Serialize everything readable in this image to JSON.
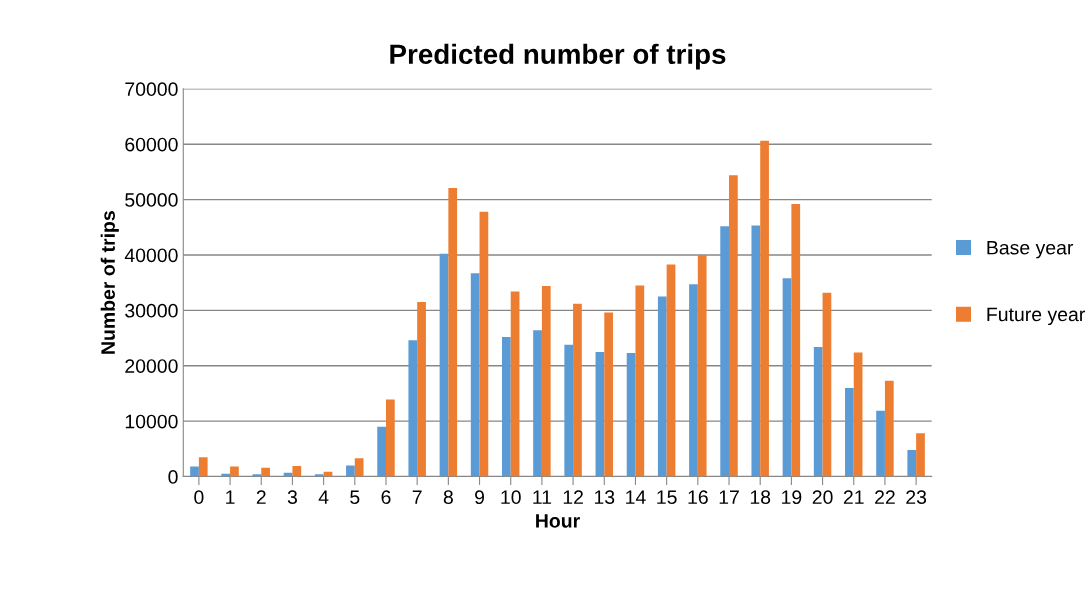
{
  "chart_data": {
    "type": "bar",
    "title": "Predicted number of trips",
    "xlabel": "Hour",
    "ylabel": "Number of trips",
    "categories": [
      "0",
      "1",
      "2",
      "3",
      "4",
      "5",
      "6",
      "7",
      "8",
      "9",
      "10",
      "11",
      "12",
      "13",
      "14",
      "15",
      "16",
      "17",
      "18",
      "19",
      "20",
      "21",
      "22",
      "23"
    ],
    "series": [
      {
        "name": "Base year",
        "color": "#5b9bd5",
        "values": [
          1800,
          500,
          400,
          700,
          400,
          2000,
          9000,
          24600,
          40200,
          36700,
          25200,
          26400,
          23800,
          22500,
          22300,
          32500,
          34700,
          45200,
          45300,
          35800,
          23400,
          16000,
          11900,
          4800
        ]
      },
      {
        "name": "Future year",
        "color": "#ed7d31",
        "values": [
          3500,
          1800,
          1600,
          1900,
          850,
          3300,
          13900,
          31500,
          52100,
          47800,
          33400,
          34400,
          31200,
          29600,
          34500,
          38300,
          40000,
          54400,
          60600,
          49200,
          33200,
          22400,
          17300,
          7800
        ]
      }
    ],
    "ylim": [
      0,
      70000
    ],
    "yticks": [
      0,
      10000,
      20000,
      30000,
      40000,
      50000,
      60000,
      70000
    ],
    "grid": "y",
    "legend": "right"
  }
}
